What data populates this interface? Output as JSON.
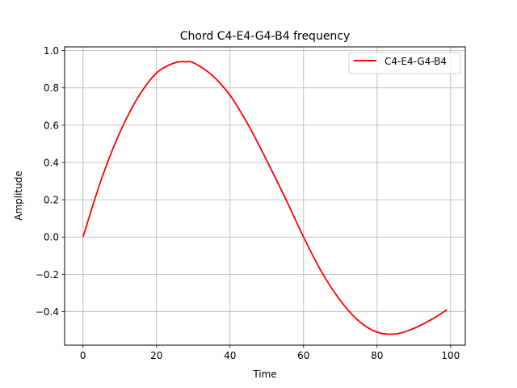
{
  "chart_data": {
    "type": "line",
    "title": "Chord C4-E4-G4-B4 frequency",
    "xlabel": "Time",
    "ylabel": "Amplitude",
    "xlim": [
      -5,
      104
    ],
    "ylim": [
      -0.58,
      1.02
    ],
    "grid": true,
    "legend_position": "top-right",
    "xticks": [
      0,
      20,
      40,
      60,
      80,
      100
    ],
    "xtick_labels": [
      "0",
      "20",
      "40",
      "60",
      "80",
      "100"
    ],
    "yticks": [
      1.0,
      0.8,
      0.6,
      0.4,
      0.2,
      0.0,
      -0.2,
      -0.4
    ],
    "ytick_labels": [
      "1.0",
      "0.8",
      "0.6",
      "0.4",
      "0.2",
      "0.0",
      "−0.2",
      "−0.4"
    ],
    "series": [
      {
        "name": "C4-E4-G4-B4",
        "color": "#ff0000",
        "x": [
          0,
          5,
          10,
          15,
          20,
          25,
          28,
          30,
          35,
          40,
          45,
          50,
          55,
          60,
          65,
          70,
          75,
          80,
          85,
          90,
          95,
          99
        ],
        "y": [
          0.0,
          0.31,
          0.56,
          0.75,
          0.88,
          0.935,
          0.94,
          0.935,
          0.87,
          0.76,
          0.6,
          0.41,
          0.21,
          0.0,
          -0.19,
          -0.34,
          -0.45,
          -0.51,
          -0.52,
          -0.49,
          -0.44,
          -0.39
        ]
      }
    ]
  }
}
